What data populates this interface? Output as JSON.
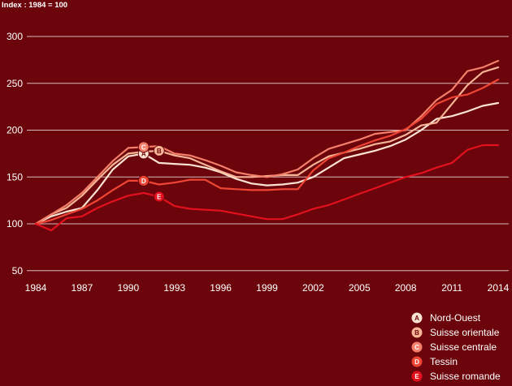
{
  "chart_data": {
    "type": "line",
    "subtitle": "Index : 1984 = 100",
    "ylim": [
      40,
      310
    ],
    "yticks": [
      50,
      100,
      150,
      200,
      250,
      300
    ],
    "xlim": [
      1983.5,
      2014.5
    ],
    "xticks": [
      1984,
      1987,
      1990,
      1993,
      1996,
      1999,
      2002,
      2005,
      2008,
      2011,
      2014
    ],
    "grid": true,
    "legend_position": "bottom-right",
    "x": [
      1984,
      1985,
      1986,
      1987,
      1988,
      1989,
      1990,
      1991,
      1992,
      1993,
      1994,
      1995,
      1996,
      1997,
      1998,
      1999,
      2000,
      2001,
      2002,
      2003,
      2004,
      2005,
      2006,
      2007,
      2008,
      2009,
      2010,
      2011,
      2012,
      2013,
      2014
    ],
    "series": [
      {
        "marker": "A",
        "name": "Nord-Ouest",
        "color": "#fbe3d2",
        "marker_year": 1991,
        "values": [
          100,
          108,
          113,
          117,
          136,
          158,
          172,
          175,
          165,
          164,
          163,
          160,
          155,
          148,
          143,
          141,
          142,
          144,
          150,
          160,
          170,
          174,
          178,
          183,
          190,
          200,
          212,
          215,
          220,
          226,
          229
        ]
      },
      {
        "marker": "B",
        "name": "Suisse orientale",
        "color": "#f6b596",
        "marker_year": 1992,
        "values": [
          100,
          110,
          117,
          130,
          147,
          163,
          175,
          177,
          178,
          173,
          170,
          163,
          156,
          150,
          150,
          151,
          152,
          152,
          163,
          172,
          176,
          180,
          185,
          188,
          195,
          205,
          208,
          228,
          248,
          262,
          267
        ]
      },
      {
        "marker": "C",
        "name": "Suisse centrale",
        "color": "#f47f6a",
        "marker_year": 1991,
        "values": [
          100,
          110,
          120,
          133,
          150,
          167,
          181,
          182,
          183,
          175,
          173,
          168,
          162,
          155,
          152,
          150,
          153,
          158,
          170,
          180,
          185,
          190,
          196,
          198,
          200,
          215,
          232,
          243,
          263,
          267,
          274
        ]
      },
      {
        "marker": "D",
        "name": "Tessin",
        "color": "#ef4535",
        "marker_year": 1991,
        "values": [
          100,
          104,
          110,
          116,
          125,
          136,
          146,
          146,
          142,
          144,
          147,
          147,
          138,
          137,
          136,
          136,
          137,
          137,
          157,
          170,
          176,
          183,
          189,
          194,
          201,
          212,
          228,
          235,
          238,
          245,
          254
        ]
      },
      {
        "marker": "E",
        "name": "Suisse romande",
        "color": "#e3111d",
        "marker_year": 1992,
        "values": [
          100,
          93,
          106,
          108,
          117,
          124,
          130,
          133,
          129,
          119,
          116,
          115,
          114,
          111,
          108,
          105,
          105,
          110,
          116,
          120,
          126,
          132,
          138,
          144,
          150,
          154,
          160,
          165,
          179,
          184,
          184
        ]
      }
    ]
  }
}
